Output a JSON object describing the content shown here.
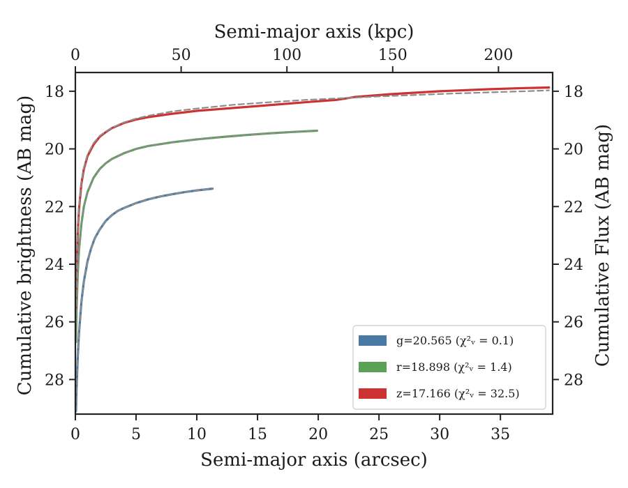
{
  "chart_data": {
    "type": "line",
    "xlabel": "Semi-major axis (arcsec)",
    "ylabel": "Cumulative brightness (AB mag)",
    "x2label": "Semi-major axis (kpc)",
    "y2label": "Cumulative Flux (AB mag)",
    "xlim": [
      0,
      39.3
    ],
    "ylim": [
      29.2,
      17.35
    ],
    "x2lim": [
      0,
      225.6
    ],
    "y_inverted": true,
    "xticks": [
      0,
      5,
      10,
      15,
      20,
      25,
      30,
      35
    ],
    "yticks": [
      18,
      20,
      22,
      24,
      26,
      28
    ],
    "x2ticks": [
      0,
      50,
      100,
      150,
      200
    ],
    "legend_position": "lower-right",
    "legend": [
      "g=20.565 (χ²ᵥ = 0.1)",
      "r=18.898 (χ²ᵥ = 1.4)",
      "z=17.166 (χ²ᵥ = 32.5)"
    ],
    "series": [
      {
        "name": "g=20.565 (χ²ᵥ = 0.1)",
        "color": "#4a79a5",
        "x": [
          0.05,
          0.1,
          0.2,
          0.3,
          0.5,
          0.7,
          1.0,
          1.3,
          1.6,
          2.0,
          2.5,
          3.0,
          3.5,
          4.0,
          5.0,
          6.0,
          7.0,
          8.0,
          9.0,
          10.0,
          11.3
        ],
        "y": [
          29.1,
          28.3,
          27.2,
          26.4,
          25.3,
          24.6,
          23.9,
          23.45,
          23.1,
          22.8,
          22.5,
          22.3,
          22.15,
          22.05,
          21.88,
          21.75,
          21.65,
          21.57,
          21.5,
          21.44,
          21.38
        ]
      },
      {
        "name": "r=18.898 (χ²ᵥ = 1.4)",
        "color": "#5aa055",
        "x": [
          0.05,
          0.1,
          0.2,
          0.3,
          0.5,
          0.7,
          1.0,
          1.5,
          2.0,
          2.5,
          3.0,
          4.0,
          5.0,
          6.0,
          8.0,
          10.0,
          12.0,
          14.0,
          16.0,
          18.0,
          19.9
        ],
        "y": [
          26.7,
          25.6,
          24.3,
          23.5,
          22.6,
          22.0,
          21.5,
          21.0,
          20.7,
          20.5,
          20.35,
          20.15,
          20.0,
          19.9,
          19.77,
          19.67,
          19.59,
          19.52,
          19.46,
          19.41,
          19.37
        ]
      },
      {
        "name": "z=17.166 (χ²ᵥ = 32.5)",
        "color": "#cd3232",
        "x": [
          0.05,
          0.1,
          0.2,
          0.3,
          0.5,
          0.7,
          1.0,
          1.5,
          2.0,
          2.5,
          3.0,
          4.0,
          5.0,
          6.0,
          8.0,
          10.0,
          13.0,
          16.0,
          19.0,
          21.5,
          23.0,
          26.0,
          30.0,
          34.0,
          37.0,
          39.0
        ],
        "y": [
          25.5,
          24.3,
          22.9,
          22.1,
          21.2,
          20.7,
          20.25,
          19.85,
          19.58,
          19.42,
          19.28,
          19.1,
          18.98,
          18.9,
          18.78,
          18.68,
          18.58,
          18.48,
          18.38,
          18.3,
          18.2,
          18.1,
          18.0,
          17.93,
          17.89,
          17.87
        ]
      },
      {
        "name": "",
        "color": "#8c8c8c",
        "dashed": true,
        "x": [
          0.05,
          0.1,
          0.2,
          0.3,
          0.5,
          0.7,
          1.0,
          1.3,
          1.6,
          2.0,
          2.5,
          3.0,
          3.5,
          4.0,
          5.0,
          6.0,
          7.0,
          8.0,
          9.0,
          10.0,
          11.3
        ],
        "y": [
          29.1,
          28.3,
          27.2,
          26.4,
          25.3,
          24.6,
          23.9,
          23.45,
          23.1,
          22.8,
          22.5,
          22.3,
          22.15,
          22.05,
          21.88,
          21.75,
          21.65,
          21.57,
          21.5,
          21.44,
          21.38
        ]
      },
      {
        "name": "",
        "color": "#8c8c8c",
        "dashed": true,
        "x": [
          0.05,
          0.1,
          0.2,
          0.3,
          0.5,
          0.7,
          1.0,
          1.5,
          2.0,
          2.5,
          3.0,
          4.0,
          5.0,
          6.0,
          8.0,
          10.0,
          12.0,
          14.0,
          16.0,
          18.0,
          19.9
        ],
        "y": [
          26.7,
          25.6,
          24.3,
          23.5,
          22.6,
          22.0,
          21.5,
          21.0,
          20.7,
          20.5,
          20.35,
          20.15,
          20.0,
          19.9,
          19.77,
          19.67,
          19.59,
          19.52,
          19.46,
          19.41,
          19.37
        ]
      },
      {
        "name": "",
        "color": "#8c8c8c",
        "dashed": true,
        "x": [
          0.05,
          0.1,
          0.2,
          0.3,
          0.5,
          0.7,
          1.0,
          1.5,
          2.0,
          2.5,
          3.0,
          4.0,
          5.0,
          6.0,
          8.0,
          10.0,
          13.0,
          16.0,
          19.0,
          22.0,
          25.0,
          28.0,
          31.0,
          34.0,
          37.0,
          39.0
        ],
        "y": [
          25.4,
          24.2,
          22.8,
          22.0,
          21.15,
          20.65,
          20.2,
          19.8,
          19.55,
          19.4,
          19.27,
          19.08,
          18.95,
          18.85,
          18.7,
          18.6,
          18.47,
          18.38,
          18.3,
          18.24,
          18.18,
          18.13,
          18.08,
          18.04,
          18.0,
          17.97
        ]
      }
    ]
  }
}
